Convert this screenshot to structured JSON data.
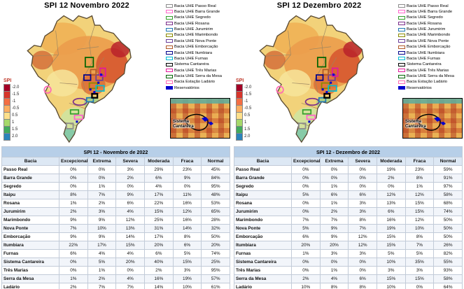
{
  "panels": [
    {
      "title_prefix": "SPI 12",
      "title_month": "Novembro 2022",
      "inset_label": "Sistema Cantareira"
    },
    {
      "title_prefix": "SPI 12",
      "title_month": "Dezembro 2022",
      "inset_label": "Sistema Cantareira"
    }
  ],
  "colorbar": {
    "label": "SPI",
    "ticks": [
      "-2.0",
      "-1.5",
      "-1",
      "-0.5",
      "0.5",
      "1",
      "1.5",
      "2.0"
    ],
    "colors": [
      "#a50026",
      "#d7352b",
      "#f46d43",
      "#fdae61",
      "#fee08b",
      "#a6d96a",
      "#41ab5d",
      "#2b83ba"
    ]
  },
  "legend": {
    "items": [
      {
        "label": "Bacia UHE Passo Real",
        "color": "#8c8c8c",
        "style": "outline"
      },
      {
        "label": "Bacia UHE Barra Grande",
        "color": "#ff66cc",
        "style": "outline"
      },
      {
        "label": "Bacia UHE Segredo",
        "color": "#33a02c",
        "style": "outline"
      },
      {
        "label": "Bacia UHE Rosana",
        "color": "#7b2d8b",
        "style": "outline"
      },
      {
        "label": "Bacia UHE Jurumirim",
        "color": "#1f78b4",
        "style": "outline"
      },
      {
        "label": "Bacia UHE Marimbondo",
        "color": "#8a8a00",
        "style": "outline"
      },
      {
        "label": "Bacia UHE Nova Ponte",
        "color": "#6a3d9a",
        "style": "outline"
      },
      {
        "label": "Bacia UHE Emborcação",
        "color": "#b15928",
        "style": "outline"
      },
      {
        "label": "Bacia UHE Itumbiara",
        "color": "#00008b",
        "style": "outline"
      },
      {
        "label": "Bacia UHE Furnas",
        "color": "#00bcd4",
        "style": "outline"
      },
      {
        "label": "Sistema Cantareira",
        "color": "#000000",
        "style": "outline-bold"
      },
      {
        "label": "Bacia UHE Três Marias",
        "color": "#e3199d",
        "style": "outline"
      },
      {
        "label": "Bacia UHE Serra da Mesa",
        "color": "#006400",
        "style": "outline"
      },
      {
        "label": "Bacia Estação Ladário",
        "color": "#ff69b4",
        "style": "outline"
      },
      {
        "label": "Reservatórios",
        "color": "#0000cc",
        "style": "filled"
      }
    ]
  },
  "chart_data": [
    {
      "type": "table",
      "title": "SPI 12 - Novembro de 2022",
      "columns": [
        "Bacia",
        "Excepcional",
        "Extrema",
        "Severa",
        "Moderada",
        "Fraca",
        "Normal"
      ],
      "rows": [
        [
          "Passo Real",
          "0%",
          "0%",
          "3%",
          "29%",
          "23%",
          "45%"
        ],
        [
          "Barra Grande",
          "0%",
          "0%",
          "2%",
          "6%",
          "9%",
          "84%"
        ],
        [
          "Segredo",
          "0%",
          "1%",
          "0%",
          "4%",
          "0%",
          "95%"
        ],
        [
          "Itaipu",
          "8%",
          "7%",
          "9%",
          "17%",
          "11%",
          "48%"
        ],
        [
          "Rosana",
          "1%",
          "2%",
          "6%",
          "22%",
          "16%",
          "53%"
        ],
        [
          "Jurumirim",
          "2%",
          "3%",
          "4%",
          "15%",
          "12%",
          "65%"
        ],
        [
          "Marimbondo",
          "9%",
          "9%",
          "12%",
          "25%",
          "16%",
          "28%"
        ],
        [
          "Nova Ponte",
          "7%",
          "10%",
          "13%",
          "31%",
          "14%",
          "32%"
        ],
        [
          "Emborcação",
          "9%",
          "9%",
          "14%",
          "17%",
          "8%",
          "50%"
        ],
        [
          "Itumbiara",
          "22%",
          "17%",
          "15%",
          "20%",
          "6%",
          "20%"
        ],
        [
          "Furnas",
          "6%",
          "4%",
          "4%",
          "6%",
          "5%",
          "74%"
        ],
        [
          "Sistema Cantareira",
          "0%",
          "5%",
          "20%",
          "40%",
          "15%",
          "25%"
        ],
        [
          "Três Marias",
          "0%",
          "1%",
          "0%",
          "2%",
          "3%",
          "95%"
        ],
        [
          "Serra da Mesa",
          "1%",
          "2%",
          "4%",
          "16%",
          "19%",
          "57%"
        ],
        [
          "Ladário",
          "2%",
          "7%",
          "7%",
          "14%",
          "10%",
          "61%"
        ]
      ]
    },
    {
      "type": "table",
      "title": "SPI 12 - Dezembro de 2022",
      "columns": [
        "Bacia",
        "Excepcional",
        "Extrema",
        "Severa",
        "Moderada",
        "Fraca",
        "Normal"
      ],
      "rows": [
        [
          "Passo Real",
          "0%",
          "0%",
          "0%",
          "19%",
          "23%",
          "59%"
        ],
        [
          "Barra Grande",
          "0%",
          "0%",
          "0%",
          "2%",
          "8%",
          "91%"
        ],
        [
          "Segredo",
          "0%",
          "1%",
          "0%",
          "0%",
          "1%",
          "97%"
        ],
        [
          "Itaipu",
          "5%",
          "6%",
          "6%",
          "12%",
          "12%",
          "58%"
        ],
        [
          "Rosana",
          "0%",
          "1%",
          "3%",
          "13%",
          "15%",
          "68%"
        ],
        [
          "Jurumirim",
          "0%",
          "2%",
          "3%",
          "6%",
          "15%",
          "74%"
        ],
        [
          "Marimbondo",
          "7%",
          "7%",
          "8%",
          "16%",
          "12%",
          "50%"
        ],
        [
          "Nova Ponte",
          "5%",
          "9%",
          "7%",
          "19%",
          "10%",
          "50%"
        ],
        [
          "Emborcação",
          "6%",
          "9%",
          "12%",
          "15%",
          "8%",
          "50%"
        ],
        [
          "Itumbiara",
          "20%",
          "20%",
          "12%",
          "15%",
          "7%",
          "26%"
        ],
        [
          "Furnas",
          "1%",
          "3%",
          "3%",
          "5%",
          "5%",
          "82%"
        ],
        [
          "Sistema Cantareira",
          "0%",
          "0%",
          "0%",
          "10%",
          "35%",
          "55%"
        ],
        [
          "Três Marias",
          "0%",
          "1%",
          "0%",
          "3%",
          "3%",
          "93%"
        ],
        [
          "Serra da Mesa",
          "2%",
          "4%",
          "6%",
          "15%",
          "15%",
          "58%"
        ],
        [
          "Ladário",
          "10%",
          "8%",
          "8%",
          "10%",
          "0%",
          "64%"
        ]
      ]
    }
  ]
}
